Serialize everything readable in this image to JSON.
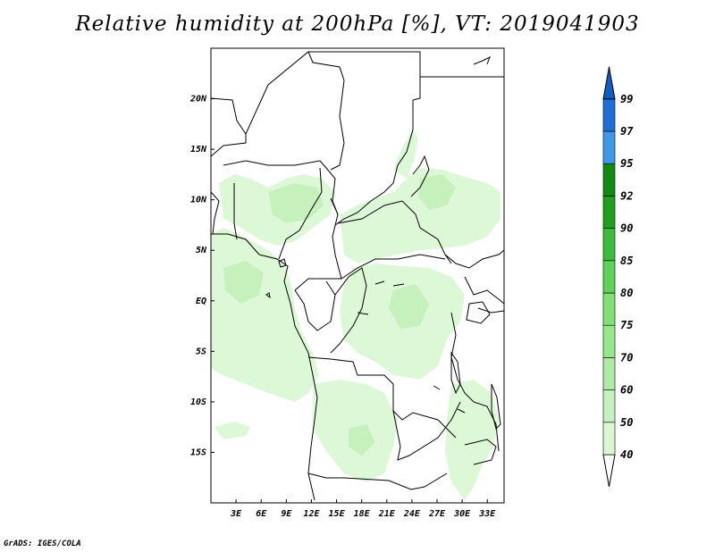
{
  "title": "Relative humidity at 200hPa [%], VT: 2019041903",
  "credit": "GrADS: IGES/COLA",
  "map": {
    "lon_range": [
      0,
      35
    ],
    "lat_range": [
      -20,
      25
    ],
    "x_ticks": [
      "3E",
      "6E",
      "9E",
      "12E",
      "15E",
      "18E",
      "21E",
      "24E",
      "27E",
      "30E",
      "33E"
    ],
    "y_ticks": [
      "20N",
      "15N",
      "10N",
      "5N",
      "EQ",
      "5S",
      "10S",
      "15S"
    ]
  },
  "colorbar": {
    "labels": [
      "40",
      "50",
      "60",
      "70",
      "75",
      "80",
      "85",
      "90",
      "92",
      "95",
      "97",
      "99"
    ],
    "colors": [
      "#eafbe6",
      "#d9f7d1",
      "#c4f2bd",
      "#aeeca4",
      "#96e68c",
      "#7fe073",
      "#5fd25a",
      "#3cbb3c",
      "#1f9e1f",
      "#118a11",
      "#3e98e8",
      "#1e6fd8",
      "#135cc4"
    ]
  }
}
